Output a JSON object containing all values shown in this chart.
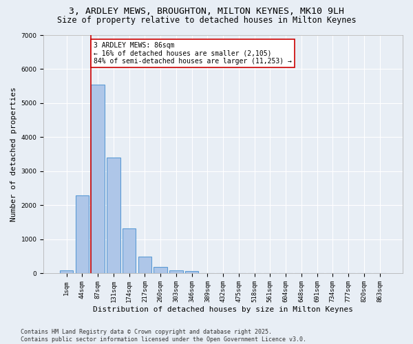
{
  "title_line1": "3, ARDLEY MEWS, BROUGHTON, MILTON KEYNES, MK10 9LH",
  "title_line2": "Size of property relative to detached houses in Milton Keynes",
  "xlabel": "Distribution of detached houses by size in Milton Keynes",
  "ylabel": "Number of detached properties",
  "categories": [
    "1sqm",
    "44sqm",
    "87sqm",
    "131sqm",
    "174sqm",
    "217sqm",
    "260sqm",
    "303sqm",
    "346sqm",
    "389sqm",
    "432sqm",
    "475sqm",
    "518sqm",
    "561sqm",
    "604sqm",
    "648sqm",
    "691sqm",
    "734sqm",
    "777sqm",
    "820sqm",
    "863sqm"
  ],
  "values": [
    100,
    2300,
    5550,
    3400,
    1320,
    500,
    195,
    100,
    65,
    0,
    0,
    0,
    0,
    0,
    0,
    0,
    0,
    0,
    0,
    0,
    0
  ],
  "bar_color": "#aec6e8",
  "bar_edge_color": "#5b9bd5",
  "vline_color": "#cc0000",
  "annotation_text": "3 ARDLEY MEWS: 86sqm\n← 16% of detached houses are smaller (2,105)\n84% of semi-detached houses are larger (11,253) →",
  "annotation_box_color": "#cc0000",
  "annotation_bg": "#ffffff",
  "ylim": [
    0,
    7000
  ],
  "yticks": [
    0,
    1000,
    2000,
    3000,
    4000,
    5000,
    6000,
    7000
  ],
  "bg_color": "#e8eef5",
  "grid_color": "#ffffff",
  "footer_line1": "Contains HM Land Registry data © Crown copyright and database right 2025.",
  "footer_line2": "Contains public sector information licensed under the Open Government Licence v3.0.",
  "title_fontsize": 9.5,
  "subtitle_fontsize": 8.5,
  "axis_label_fontsize": 8,
  "tick_fontsize": 6.5,
  "annotation_fontsize": 7,
  "footer_fontsize": 6
}
